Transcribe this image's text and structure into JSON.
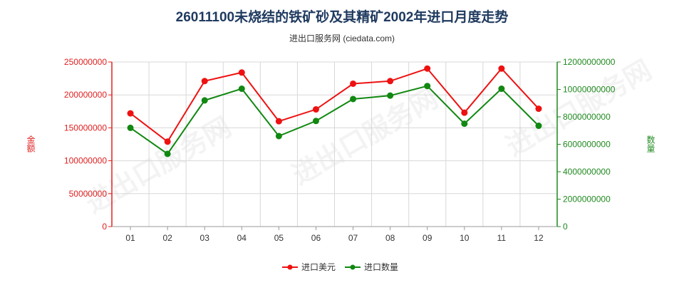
{
  "chart_data": {
    "type": "line",
    "title": "26011100未烧结的铁矿砂及其精矿2002年进口月度走势",
    "subtitle": "进出口服务网 (ciedata.com)",
    "categories": [
      "01",
      "02",
      "03",
      "04",
      "05",
      "06",
      "07",
      "08",
      "09",
      "10",
      "11",
      "12"
    ],
    "y_left": {
      "label": "金额",
      "ylim": [
        0,
        250000000
      ],
      "ticks": [
        "0",
        "50000000",
        "100000000",
        "150000000",
        "200000000",
        "250000000"
      ]
    },
    "y_right": {
      "label": "数量",
      "ylim": [
        0,
        12000000000
      ],
      "ticks": [
        "0",
        "2000000000",
        "4000000000",
        "6000000000",
        "8000000000",
        "10000000000",
        "12000000000"
      ]
    },
    "series": [
      {
        "name": "进口美元",
        "axis": "left",
        "color": "#ee1111",
        "values": [
          172000000,
          129000000,
          221000000,
          234000000,
          160000000,
          178000000,
          217000000,
          221000000,
          240000000,
          173000000,
          240000000,
          179000000
        ]
      },
      {
        "name": "进口数量",
        "axis": "right",
        "color": "#118811",
        "values": [
          7200000000,
          5300000000,
          9200000000,
          10050000000,
          6600000000,
          7700000000,
          9300000000,
          9550000000,
          10250000000,
          7500000000,
          10050000000,
          7350000000
        ]
      }
    ],
    "grid": true,
    "legend_position": "bottom-center"
  },
  "colors": {
    "left_axis": "#e02020",
    "right_axis": "#1f8a1f",
    "grid": "#d8d8d8",
    "title": "#1f3a5f"
  },
  "watermark": "进出口服务网"
}
